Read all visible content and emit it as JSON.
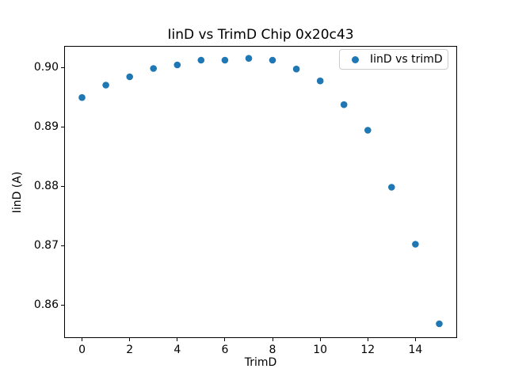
{
  "chart_data": {
    "type": "scatter",
    "title": "IinD vs TrimD Chip 0x20c43",
    "xlabel": "TrimD",
    "ylabel": "IinD (A)",
    "legend": [
      "IinD vs trimD"
    ],
    "legend_position": "upper right",
    "marker_color": "#1f77b4",
    "grid": false,
    "x": [
      0,
      1,
      2,
      3,
      4,
      5,
      6,
      7,
      8,
      9,
      10,
      11,
      12,
      13,
      14,
      15
    ],
    "y": [
      0.8949,
      0.897,
      0.8984,
      0.8998,
      0.9004,
      0.9012,
      0.9012,
      0.9015,
      0.9012,
      0.8997,
      0.8977,
      0.8937,
      0.8894,
      0.8798,
      0.8702,
      0.8568
    ],
    "xlim": [
      -0.75,
      15.75
    ],
    "ylim": [
      0.8544,
      0.9036
    ],
    "xticks": [
      0,
      2,
      4,
      6,
      8,
      10,
      12,
      14
    ],
    "xtick_labels": [
      "0",
      "2",
      "4",
      "6",
      "8",
      "10",
      "12",
      "14"
    ],
    "yticks": [
      0.86,
      0.87,
      0.88,
      0.89,
      0.9
    ],
    "ytick_labels": [
      "0.86",
      "0.87",
      "0.88",
      "0.89",
      "0.90"
    ]
  }
}
